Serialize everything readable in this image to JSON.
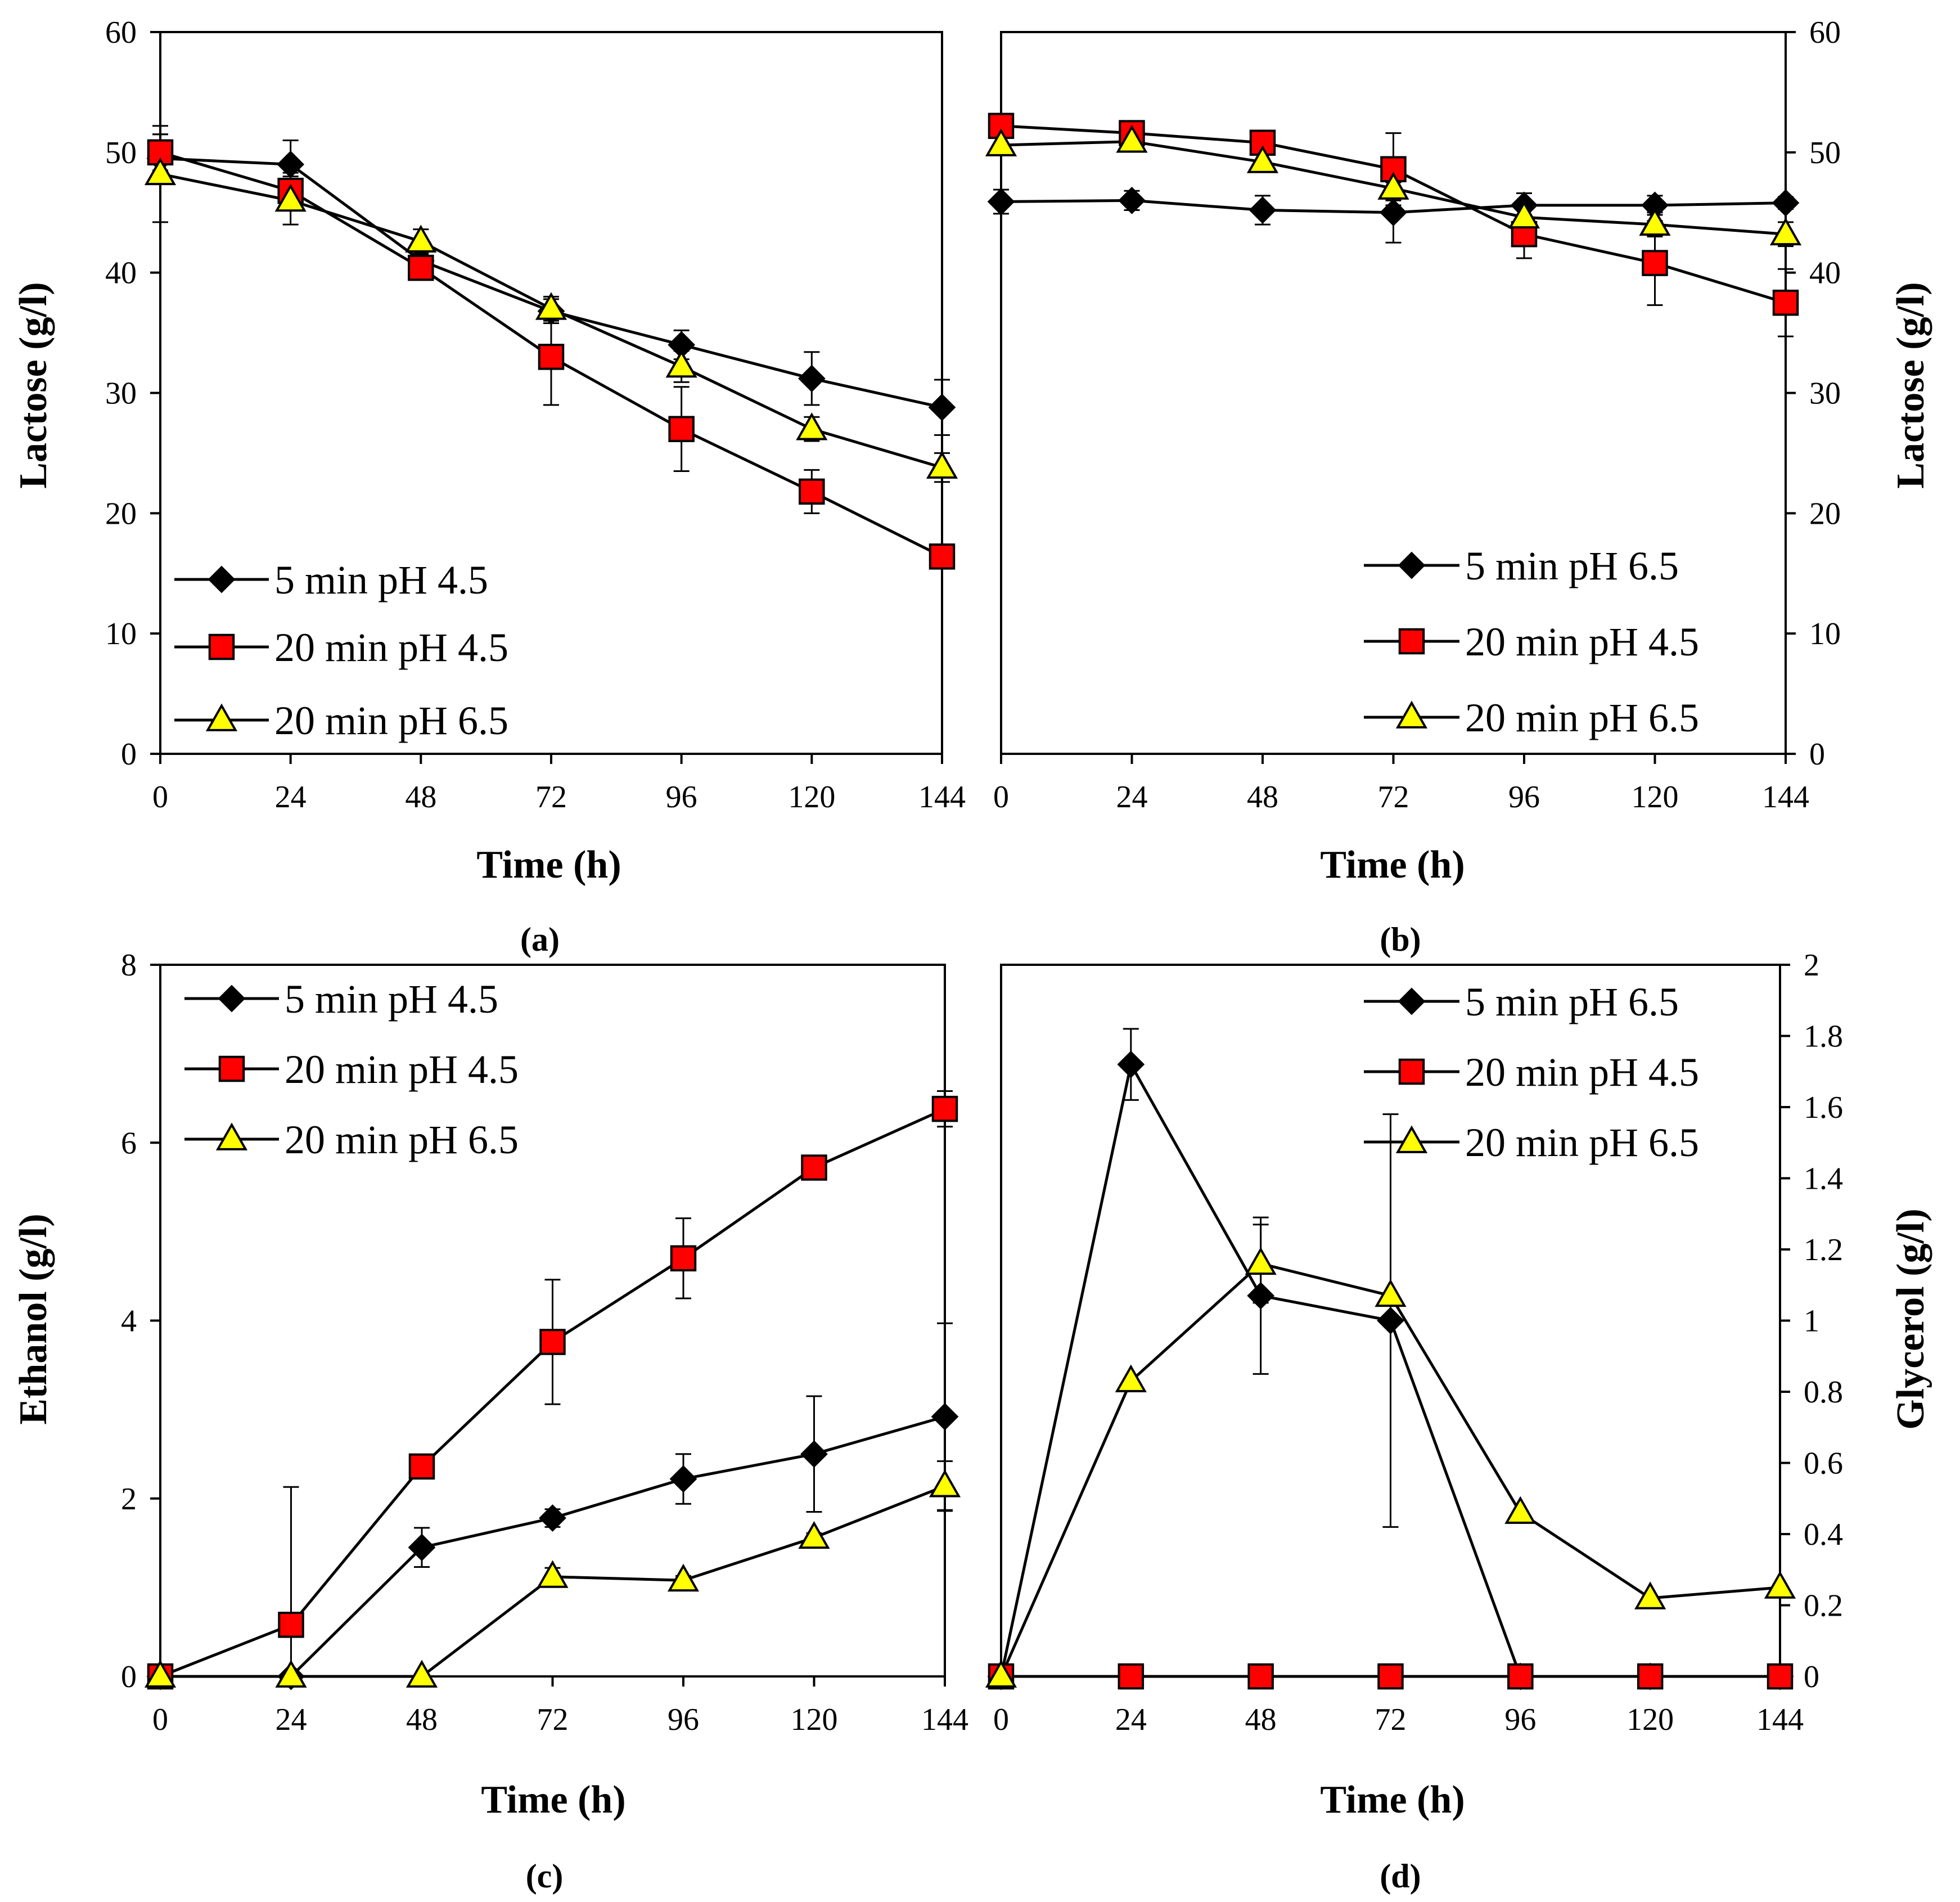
{
  "chart_data": [
    {
      "panel": "(a)",
      "type": "line",
      "xlabel": "Time (h)",
      "ylabel": "Lactose (g/l)",
      "y_axis_side": "left",
      "xlim": [
        0,
        144
      ],
      "ylim": [
        0,
        60
      ],
      "x_ticks": [
        "0",
        "24",
        "48",
        "72",
        "96",
        "120",
        "144"
      ],
      "y_ticks": [
        "0",
        "10",
        "20",
        "30",
        "40",
        "50",
        "60"
      ],
      "legend_position": "bottom-left",
      "x": [
        0,
        24,
        48,
        72,
        96,
        120,
        144
      ],
      "series": [
        {
          "name": "5 min pH 4.5",
          "marker": "diamond",
          "color": "#000000",
          "values": [
            49.5,
            49,
            41,
            36.8,
            34,
            31.2,
            28.8
          ],
          "errors": [
            2,
            2,
            1,
            1,
            1.2,
            2.2,
            2.3
          ]
        },
        {
          "name": "20 min pH 4.5",
          "marker": "square",
          "color": "#ff0000",
          "values": [
            50,
            46.8,
            40.4,
            33,
            27,
            21.8,
            16.4
          ],
          "errors": [
            1.5,
            1.5,
            0.8,
            4,
            3.5,
            1.8,
            1
          ]
        },
        {
          "name": "20 min pH 6.5",
          "marker": "triangle",
          "color": "#ffff00",
          "values": [
            48.2,
            46,
            42.6,
            37,
            32.2,
            27,
            23.8
          ],
          "errors": [
            4,
            2,
            1,
            1,
            1.3,
            1,
            1.2
          ]
        }
      ]
    },
    {
      "panel": "(b)",
      "type": "line",
      "xlabel": "Time (h)",
      "ylabel": "Lactose (g/l)",
      "y_axis_side": "right",
      "xlim": [
        0,
        144
      ],
      "ylim": [
        0,
        60
      ],
      "x_ticks": [
        "0",
        "24",
        "48",
        "72",
        "96",
        "120",
        "144"
      ],
      "y_ticks": [
        "0",
        "10",
        "20",
        "30",
        "40",
        "50",
        "60"
      ],
      "legend_position": "bottom-right",
      "x": [
        0,
        24,
        48,
        72,
        96,
        120,
        144
      ],
      "series": [
        {
          "name": "5 min pH 6.5",
          "marker": "diamond",
          "color": "#000000",
          "values": [
            45.9,
            46,
            45.2,
            45,
            45.6,
            45.6,
            45.8
          ],
          "errors": [
            1,
            0.8,
            1.2,
            2.5,
            1,
            0.8,
            0.5
          ]
        },
        {
          "name": "20 min pH 4.5",
          "marker": "square",
          "color": "#ff0000",
          "values": [
            52.2,
            51.6,
            50.8,
            48.6,
            43.2,
            40.8,
            37.5
          ],
          "errors": [
            0.8,
            0.6,
            0.8,
            3,
            2,
            3.5,
            2.8
          ]
        },
        {
          "name": "20 min pH 6.5",
          "marker": "triangle",
          "color": "#ffff00",
          "values": [
            50.6,
            50.9,
            49.2,
            47,
            44.6,
            44,
            43.2
          ],
          "errors": [
            0.8,
            0.6,
            0.8,
            1,
            1,
            1,
            1
          ]
        }
      ]
    },
    {
      "panel": "(c)",
      "type": "line",
      "xlabel": "Time (h)",
      "ylabel": "Ethanol (g/l)",
      "y_axis_side": "left",
      "xlim": [
        0,
        144
      ],
      "ylim": [
        0,
        8
      ],
      "x_ticks": [
        "0",
        "24",
        "48",
        "72",
        "96",
        "120",
        "144"
      ],
      "y_ticks": [
        "0",
        "2",
        "4",
        "6",
        "8"
      ],
      "legend_position": "top-left",
      "x": [
        0,
        24,
        48,
        72,
        96,
        120,
        144
      ],
      "series": [
        {
          "name": "5 min pH 4.5",
          "marker": "diamond",
          "color": "#000000",
          "values": [
            0,
            0,
            1.45,
            1.78,
            2.22,
            2.5,
            2.92
          ],
          "errors": [
            0,
            0,
            0.22,
            0.1,
            0.28,
            0.65,
            1.05
          ]
        },
        {
          "name": "20 min pH 4.5",
          "marker": "square",
          "color": "#ff0000",
          "values": [
            0,
            0.58,
            2.36,
            3.76,
            4.7,
            5.72,
            6.38
          ],
          "errors": [
            0,
            1.55,
            0.05,
            0.7,
            0.45,
            0.05,
            0.2
          ]
        },
        {
          "name": "20 min pH 6.5",
          "marker": "triangle",
          "color": "#ffff00",
          "values": [
            0,
            0,
            0,
            1.12,
            1.08,
            1.56,
            2.14
          ],
          "errors": [
            0,
            0,
            0,
            0.1,
            0.05,
            0.05,
            0.28
          ]
        }
      ]
    },
    {
      "panel": "(d)",
      "type": "line",
      "xlabel": "Time (h)",
      "ylabel": "Glycerol (g/l)",
      "y_axis_side": "right",
      "xlim": [
        0,
        144
      ],
      "ylim": [
        0,
        2
      ],
      "x_ticks": [
        "0",
        "24",
        "48",
        "72",
        "96",
        "120",
        "144"
      ],
      "y_ticks": [
        "0",
        "0.2",
        "0.4",
        "0.6",
        "0.8",
        "1",
        "1.2",
        "1.4",
        "1.6",
        "1.8",
        "2"
      ],
      "legend_position": "top-right",
      "x": [
        0,
        24,
        48,
        72,
        96,
        120,
        144
      ],
      "series": [
        {
          "name": "5 min pH 6.5",
          "marker": "diamond",
          "color": "#000000",
          "values": [
            0,
            1.72,
            1.07,
            1,
            0,
            0,
            0
          ],
          "errors": [
            0,
            0.1,
            0.22,
            0.58,
            0,
            0,
            0
          ]
        },
        {
          "name": "20 min pH 4.5",
          "marker": "square",
          "color": "#ff0000",
          "values": [
            0,
            0,
            0,
            0,
            0,
            0,
            0
          ],
          "errors": [
            0,
            0,
            0,
            0,
            0,
            0,
            0
          ]
        },
        {
          "name": "20 min pH 6.5",
          "marker": "triangle",
          "color": "#ffff00",
          "values": [
            0,
            0.83,
            1.16,
            1.07,
            0.46,
            0.22,
            0.25
          ],
          "errors": [
            0,
            0,
            0.11,
            0,
            0,
            0,
            0
          ]
        }
      ]
    }
  ]
}
